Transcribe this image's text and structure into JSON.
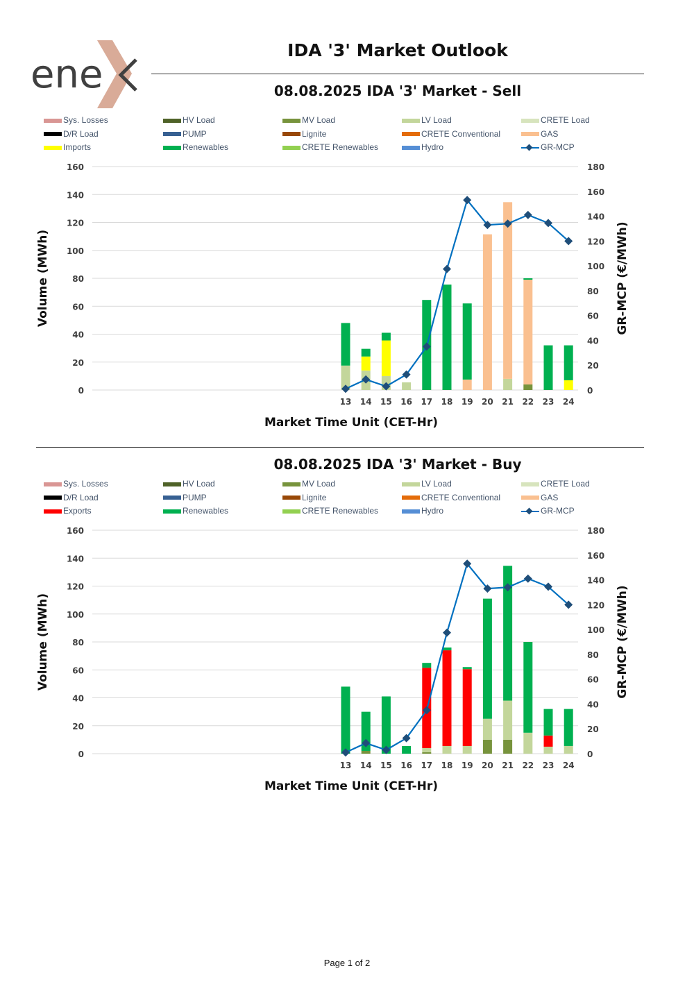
{
  "report": {
    "title": "IDA '3' Market Outlook",
    "footer": "Page 1 of 2",
    "logo_text": "ene"
  },
  "charts": {
    "sell": {
      "title": "08.08.2025  IDA '3' Market - Sell",
      "legend": [
        {
          "name": "Sys. Losses",
          "color": "#d99694"
        },
        {
          "name": "HV Load",
          "color": "#4f6228"
        },
        {
          "name": "MV Load",
          "color": "#77933c"
        },
        {
          "name": "LV Load",
          "color": "#c3d69b"
        },
        {
          "name": "CRETE Load",
          "color": "#d7e4bd"
        },
        {
          "name": "D/R Load",
          "color": "#000000"
        },
        {
          "name": "PUMP",
          "color": "#376092"
        },
        {
          "name": "Lignite",
          "color": "#984807"
        },
        {
          "name": "CRETE Conventional",
          "color": "#e46c0a"
        },
        {
          "name": "GAS",
          "color": "#fac090"
        },
        {
          "name": "Imports",
          "color": "#ffff00"
        },
        {
          "name": "Renewables",
          "color": "#00b050"
        },
        {
          "name": "CRETE Renewables",
          "color": "#92d050"
        },
        {
          "name": "Hydro",
          "color": "#558ed5"
        },
        {
          "name": "GR-MCP",
          "color": "#0070c0",
          "line": true
        }
      ],
      "xlabel": "Market Time Unit (CET-Hr)",
      "ylabel": "Volume (MWh)",
      "y2label": "GR-MCP (€/MWh)"
    },
    "buy": {
      "title": "08.08.2025  IDA '3' Market - Buy",
      "legend": [
        {
          "name": "Sys. Losses",
          "color": "#d99694"
        },
        {
          "name": "HV Load",
          "color": "#4f6228"
        },
        {
          "name": "MV Load",
          "color": "#77933c"
        },
        {
          "name": "LV Load",
          "color": "#c3d69b"
        },
        {
          "name": "CRETE Load",
          "color": "#d7e4bd"
        },
        {
          "name": "D/R Load",
          "color": "#000000"
        },
        {
          "name": "PUMP",
          "color": "#376092"
        },
        {
          "name": "Lignite",
          "color": "#984807"
        },
        {
          "name": "CRETE Conventional",
          "color": "#e46c0a"
        },
        {
          "name": "GAS",
          "color": "#fac090"
        },
        {
          "name": "Exports",
          "color": "#ff0000"
        },
        {
          "name": "Renewables",
          "color": "#00b050"
        },
        {
          "name": "CRETE Renewables",
          "color": "#92d050"
        },
        {
          "name": "Hydro",
          "color": "#558ed5"
        },
        {
          "name": "GR-MCP",
          "color": "#0070c0",
          "line": true
        }
      ],
      "xlabel": "Market Time Unit (CET-Hr)",
      "ylabel": "Volume (MWh)",
      "y2label": "GR-MCP (€/MWh)"
    }
  },
  "chart_data": [
    {
      "type": "bar",
      "stacked": true,
      "categories": [
        "13",
        "14",
        "15",
        "16",
        "17",
        "18",
        "19",
        "20",
        "21",
        "22",
        "23",
        "24"
      ],
      "ylim": [
        0,
        160
      ],
      "yticks": [
        0,
        20,
        40,
        60,
        80,
        100,
        120,
        140,
        160
      ],
      "y2lim": [
        0,
        180
      ],
      "y2ticks": [
        0,
        20,
        40,
        60,
        80,
        100,
        120,
        140,
        160,
        180
      ],
      "grid": true,
      "series": [
        {
          "name": "MV Load",
          "color": "#77933c",
          "values": [
            0,
            0,
            0,
            0,
            0,
            0,
            0,
            0,
            0,
            4,
            0,
            0
          ]
        },
        {
          "name": "LV Load",
          "color": "#c3d69b",
          "values": [
            17.5,
            14,
            10,
            5.5,
            0,
            0,
            0,
            0,
            8,
            0,
            0,
            0
          ]
        },
        {
          "name": "GAS",
          "color": "#fac090",
          "values": [
            0,
            0,
            0,
            0,
            0,
            0,
            7.5,
            111.5,
            126.5,
            75,
            0,
            0
          ]
        },
        {
          "name": "Imports",
          "color": "#ffff00",
          "values": [
            0,
            10,
            25.5,
            0,
            0,
            0,
            0,
            0,
            0,
            0,
            0,
            7
          ]
        },
        {
          "name": "Renewables",
          "color": "#00b050",
          "values": [
            30.5,
            5.5,
            5.5,
            0,
            64.5,
            75.5,
            54.5,
            0,
            0,
            1,
            32,
            25
          ]
        },
        {
          "name": "GR-MCP",
          "type": "line",
          "axis": "y2",
          "color": "#0070c0",
          "values": [
            1,
            8.5,
            3,
            12.5,
            35,
            97.5,
            153,
            133,
            134,
            141,
            134.5,
            120
          ]
        }
      ]
    },
    {
      "type": "bar",
      "stacked": true,
      "categories": [
        "13",
        "14",
        "15",
        "16",
        "17",
        "18",
        "19",
        "20",
        "21",
        "22",
        "23",
        "24"
      ],
      "ylim": [
        0,
        160
      ],
      "yticks": [
        0,
        20,
        40,
        60,
        80,
        100,
        120,
        140,
        160
      ],
      "y2lim": [
        0,
        180
      ],
      "y2ticks": [
        0,
        20,
        40,
        60,
        80,
        100,
        120,
        140,
        160,
        180
      ],
      "grid": true,
      "series": [
        {
          "name": "HV Load",
          "color": "#4f6228",
          "values": [
            0,
            0,
            0,
            0,
            0,
            0,
            0,
            0,
            0,
            0,
            0,
            0
          ]
        },
        {
          "name": "MV Load",
          "color": "#77933c",
          "values": [
            0,
            2,
            0,
            0,
            1,
            0,
            0,
            10,
            10,
            0,
            0,
            0
          ]
        },
        {
          "name": "LV Load",
          "color": "#c3d69b",
          "values": [
            0,
            0,
            0,
            0,
            3,
            5.5,
            5.5,
            15,
            28,
            15,
            5,
            5.5
          ]
        },
        {
          "name": "Exports",
          "color": "#ff0000",
          "values": [
            0,
            0,
            0,
            0,
            57.5,
            68.5,
            55,
            0,
            0,
            0,
            8,
            0
          ]
        },
        {
          "name": "Renewables",
          "color": "#00b050",
          "values": [
            48,
            28,
            41,
            5.5,
            3.5,
            2,
            1.5,
            86,
            96.5,
            65,
            19,
            26.5
          ]
        },
        {
          "name": "GR-MCP",
          "type": "line",
          "axis": "y2",
          "color": "#0070c0",
          "values": [
            1,
            8.5,
            3,
            12.5,
            35,
            97.5,
            153,
            133,
            134,
            141,
            134.5,
            120
          ]
        }
      ]
    }
  ]
}
